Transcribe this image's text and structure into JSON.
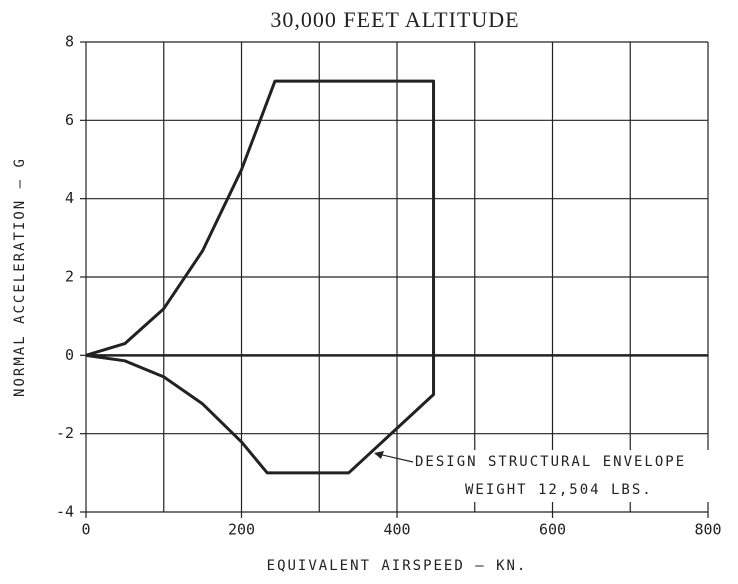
{
  "chart_data": {
    "type": "line",
    "title": "30,000 FEET ALTITUDE",
    "xlabel": "EQUIVALENT AIRSPEED — KN.",
    "ylabel": "NORMAL ACCELERATION — G",
    "xlim": [
      0,
      800
    ],
    "ylim": [
      -4,
      8
    ],
    "xticks": [
      0,
      200,
      400,
      600,
      800
    ],
    "yticks": [
      -4,
      -2,
      0,
      2,
      4,
      6,
      8
    ],
    "x_minor_grid": [
      100,
      300,
      500,
      700
    ],
    "grid": true,
    "series": [
      {
        "color": "#222222",
        "x": [
          0,
          50,
          100,
          150,
          200,
          243,
          447,
          447,
          338,
          233,
          200,
          150,
          100,
          50,
          0
        ],
        "values": [
          0,
          0.3,
          1.19,
          2.67,
          4.74,
          7,
          7,
          -1,
          -3,
          -3,
          -2.21,
          -1.24,
          -0.55,
          -0.14,
          0
        ]
      }
    ],
    "annotations": [
      "DESIGN STRUCTURAL ENVELOPE",
      "WEIGHT 12,504 LBS."
    ]
  }
}
